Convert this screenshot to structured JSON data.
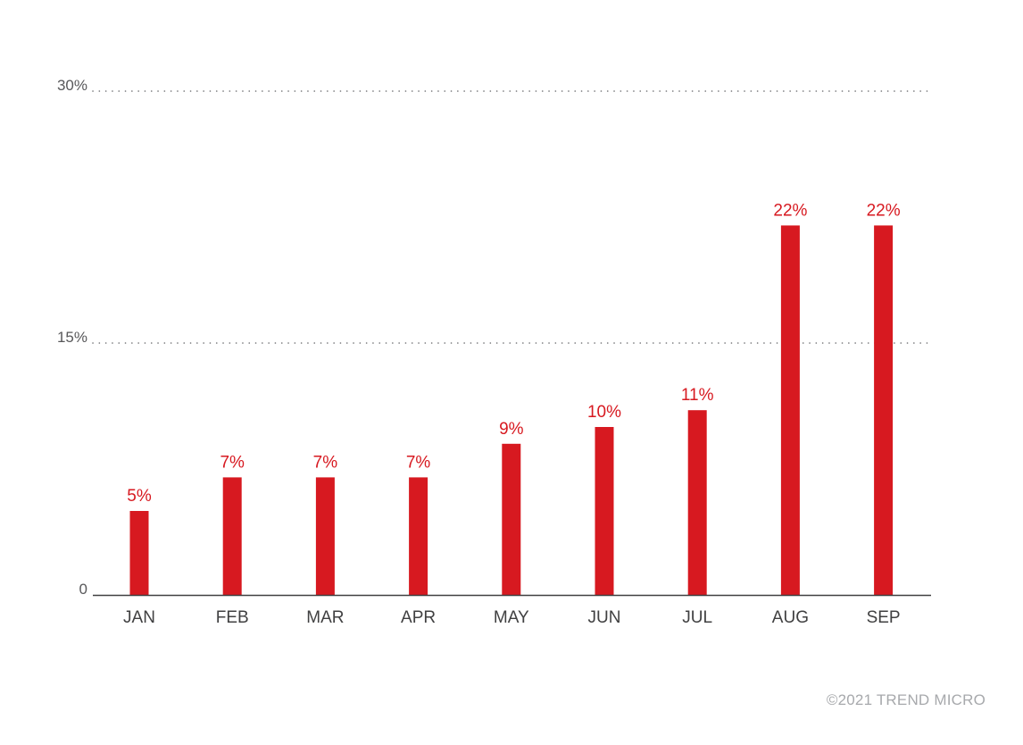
{
  "chart_data": {
    "type": "bar",
    "categories": [
      "JAN",
      "FEB",
      "MAR",
      "APR",
      "MAY",
      "JUN",
      "JUL",
      "AUG",
      "SEP"
    ],
    "values": [
      5,
      7,
      7,
      7,
      9,
      10,
      11,
      22,
      22
    ],
    "value_labels": [
      "5%",
      "7%",
      "7%",
      "7%",
      "9%",
      "10%",
      "11%",
      "22%",
      "22%"
    ],
    "ylim": [
      0,
      30
    ],
    "y_ticks": [
      {
        "value": 0,
        "label": "0"
      },
      {
        "value": 15,
        "label": "15%"
      },
      {
        "value": 30,
        "label": "30%"
      }
    ],
    "grid": "dotted",
    "bar_color": "#d71920",
    "title": "",
    "xlabel": "",
    "ylabel": ""
  },
  "credit": "©2021 TREND MICRO"
}
